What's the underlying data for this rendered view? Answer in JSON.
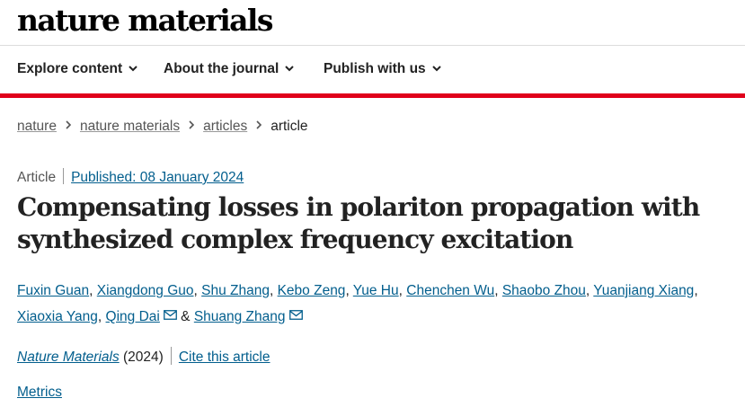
{
  "site": {
    "logo": "nature materials"
  },
  "nav": {
    "items": [
      {
        "label": "Explore content"
      },
      {
        "label": "About the journal"
      },
      {
        "label": "Publish with us"
      }
    ]
  },
  "breadcrumb": {
    "items": [
      "nature",
      "nature materials",
      "articles"
    ],
    "current": "article"
  },
  "article": {
    "type": "Article",
    "published": "Published: 08 January 2024",
    "title": "Compensating losses in polariton propagation with synthesized complex frequency excitation",
    "authors": [
      "Fuxin Guan",
      "Xiangdong Guo",
      "Shu Zhang",
      "Kebo Zeng",
      "Yue Hu",
      "Chenchen Wu",
      "Shaobo Zhou",
      "Yuanjiang Xiang",
      "Xiaoxia Yang",
      "Qing Dai",
      "Shuang Zhang"
    ],
    "author_separator": ", ",
    "author_and": " & ",
    "journal": "Nature Materials",
    "year": " (2024)",
    "cite_label": "Cite this article",
    "metrics_label": "Metrics"
  },
  "colors": {
    "brand_red": "#e0001b",
    "link_blue": "#025e8d"
  },
  "icons": [
    "chevron-down-icon",
    "chevron-right-icon",
    "mail-icon"
  ]
}
